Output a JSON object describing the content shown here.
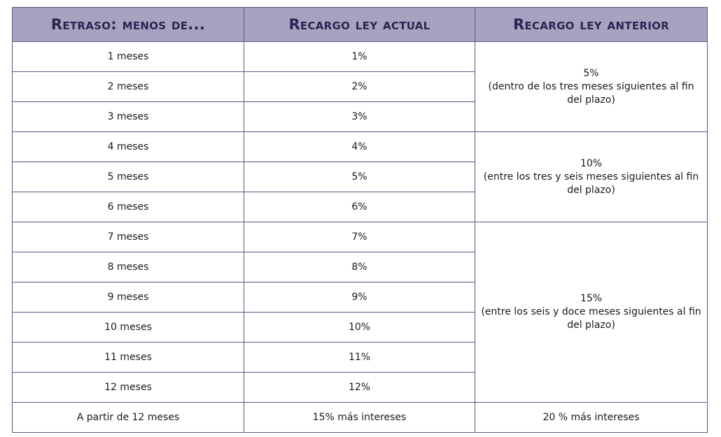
{
  "headers": [
    "Retraso: menos de...",
    "Recargo ley actual",
    "Recargo ley anterior"
  ],
  "rows": [
    {
      "delay": "1 meses",
      "current": "1%"
    },
    {
      "delay": "2 meses",
      "current": "2%"
    },
    {
      "delay": "3 meses",
      "current": "3%"
    },
    {
      "delay": "4 meses",
      "current": "4%"
    },
    {
      "delay": "5 meses",
      "current": "5%"
    },
    {
      "delay": "6 meses",
      "current": "6%"
    },
    {
      "delay": "7 meses",
      "current": "7%"
    },
    {
      "delay": "8 meses",
      "current": "8%"
    },
    {
      "delay": "9 meses",
      "current": "9%"
    },
    {
      "delay": "10 meses",
      "current": "10%"
    },
    {
      "delay": "11 meses",
      "current": "11%"
    },
    {
      "delay": "12 meses",
      "current": "12%"
    }
  ],
  "previous_law_groups": [
    {
      "value": "5%",
      "note": "(dentro de los tres meses siguientes al fin del plazo)"
    },
    {
      "value": "10%",
      "note": "(entre los tres y seis meses siguientes al fin del plazo)"
    },
    {
      "value": "15%",
      "note": "(entre los seis y doce meses siguientes al fin del plazo)"
    }
  ],
  "final_row": {
    "delay": "A partir de 12 meses",
    "current": "15% más intereses",
    "previous": "20 % más intereses"
  }
}
